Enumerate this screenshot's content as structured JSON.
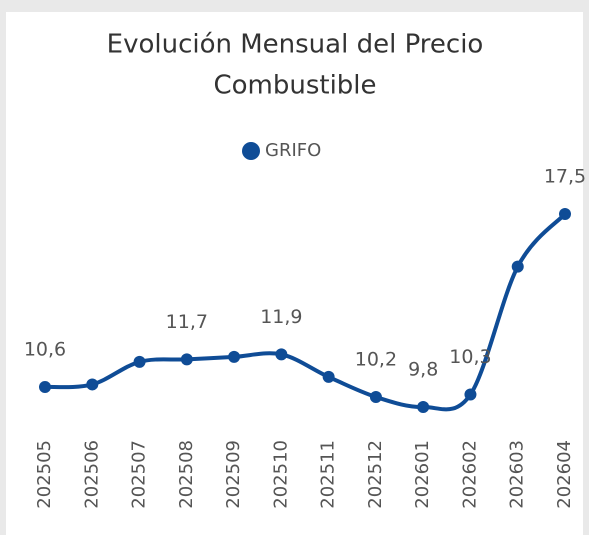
{
  "chart_data": {
    "type": "line",
    "title": "Evolución Mensual del Precio Combustible",
    "categories": [
      "202505",
      "202506",
      "202507",
      "202508",
      "202509",
      "202510",
      "202511",
      "202512",
      "202601",
      "202602",
      "202603",
      "202604"
    ],
    "series": [
      {
        "name": "GRIFO",
        "color": "#0f4c96",
        "values": [
          10.6,
          10.7,
          11.6,
          11.7,
          11.8,
          11.9,
          11.0,
          10.2,
          9.8,
          10.3,
          15.4,
          17.5
        ],
        "value_labels": [
          "10,6",
          null,
          null,
          "11,7",
          null,
          "11,9",
          null,
          "10,2",
          "9,8",
          "10,3",
          null,
          "17,5"
        ]
      }
    ]
  }
}
